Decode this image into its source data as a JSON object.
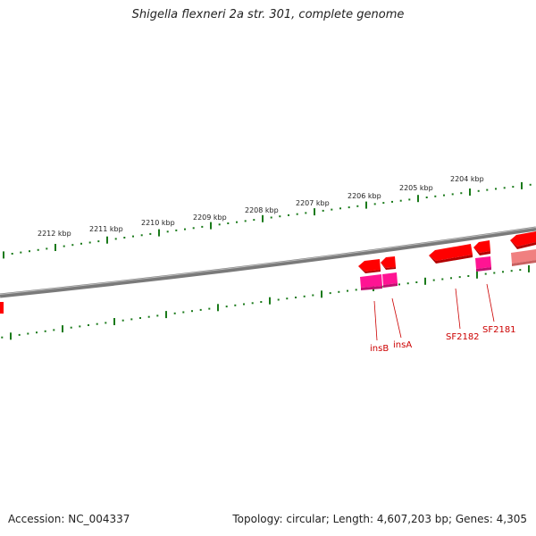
{
  "title": "Shigella flexneri 2a str. 301, complete genome",
  "footer": {
    "accession": "Accession: NC_004337",
    "summary": "Topology: circular; Length: 4,607,203 bp; Genes: 4,305"
  },
  "colors": {
    "backbone": "#808080",
    "tick": "#1a7a1a",
    "gene_forward": "#ff0000",
    "gene_reverse": "#ff1493",
    "gene_faded": "#f08080",
    "label": "#cc0000"
  },
  "scale_labels": [
    "2212 kbp",
    "2211 kbp",
    "2210 kbp",
    "2209 kbp",
    "2208 kbp",
    "2207 kbp",
    "2206 kbp",
    "2205 kbp",
    "2204 kbp"
  ],
  "gene_labels": [
    "insB",
    "insA",
    "SF2182",
    "SF2181"
  ]
}
